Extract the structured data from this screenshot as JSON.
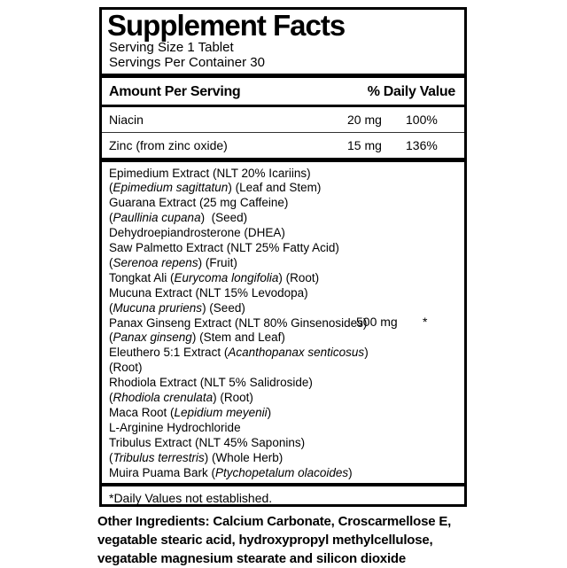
{
  "colors": {
    "ink": "#000000",
    "paper": "#ffffff",
    "thin_rule": "#333333"
  },
  "panel": {
    "title": "Supplement Facts",
    "serving_size": "Serving Size 1 Tablet",
    "servings_per_container": "Servings Per Container 30",
    "header": {
      "amount_label": "Amount Per Serving",
      "daily_value_label": "% Daily Value"
    },
    "nutrients": [
      {
        "name": "Niacin",
        "amount": "20 mg",
        "daily_value": "100%"
      },
      {
        "name": "Zinc (from zinc oxide)",
        "amount": "15 mg",
        "daily_value": "136%"
      }
    ],
    "blend": {
      "amount": "500 mg",
      "daily_value": "*",
      "lines": [
        [
          {
            "text": "Epimedium Extract (NLT 20% Icariins)"
          }
        ],
        [
          {
            "text": "("
          },
          {
            "text": "Epimedium sagittatun",
            "italic": true
          },
          {
            "text": ") (Leaf and Stem)"
          }
        ],
        [
          {
            "text": "Guarana Extract (25 mg Caffeine)"
          }
        ],
        [
          {
            "text": "("
          },
          {
            "text": "Paullinia cupana",
            "italic": true
          },
          {
            "text": ")  (Seed)"
          }
        ],
        [
          {
            "text": "Dehydroepiandrosterone (DHEA)"
          }
        ],
        [
          {
            "text": "Saw Palmetto Extract (NLT 25% Fatty Acid)"
          }
        ],
        [
          {
            "text": "("
          },
          {
            "text": "Serenoa repens",
            "italic": true
          },
          {
            "text": ") (Fruit)"
          }
        ],
        [
          {
            "text": "Tongkat Ali ("
          },
          {
            "text": "Eurycoma longifolia",
            "italic": true
          },
          {
            "text": ") (Root)"
          }
        ],
        [
          {
            "text": "Mucuna Extract (NLT 15% Levodopa)"
          }
        ],
        [
          {
            "text": "("
          },
          {
            "text": "Mucuna pruriens",
            "italic": true
          },
          {
            "text": ") (Seed)"
          }
        ],
        [
          {
            "text": "Panax Ginseng Extract (NLT 80% Ginsenosides)"
          }
        ],
        [
          {
            "text": "("
          },
          {
            "text": "Panax ginseng",
            "italic": true
          },
          {
            "text": ") (Stem and Leaf)"
          }
        ],
        [
          {
            "text": "Eleuthero 5:1 Extract ("
          },
          {
            "text": "Acanthopanax senticosus",
            "italic": true
          },
          {
            "text": ")"
          }
        ],
        [
          {
            "text": "(Root)"
          }
        ],
        [
          {
            "text": "Rhodiola Extract (NLT 5% Salidroside)"
          }
        ],
        [
          {
            "text": "("
          },
          {
            "text": "Rhodiola crenulata",
            "italic": true
          },
          {
            "text": ") (Root)"
          }
        ],
        [
          {
            "text": "Maca Root ("
          },
          {
            "text": "Lepidium meyenii",
            "italic": true
          },
          {
            "text": ")"
          }
        ],
        [
          {
            "text": "L-Arginine Hydrochloride"
          }
        ],
        [
          {
            "text": "Tribulus Extract (NLT 45% Saponins)"
          }
        ],
        [
          {
            "text": "("
          },
          {
            "text": "Tribulus terrestris",
            "italic": true
          },
          {
            "text": ") (Whole Herb)"
          }
        ],
        [
          {
            "text": "Muira Puama Bark ("
          },
          {
            "text": "Ptychopetalum olacoides",
            "italic": true
          },
          {
            "text": ")"
          }
        ]
      ]
    },
    "footnote": "*Daily Values not established."
  },
  "other_ingredients_lines": [
    "Other Ingredients: Calcium Carbonate, Croscarmellose E,",
    "vegatable stearic acid, hydroxypropyl methylcellulose,",
    "vegatable magnesium stearate and silicon dioxide"
  ]
}
